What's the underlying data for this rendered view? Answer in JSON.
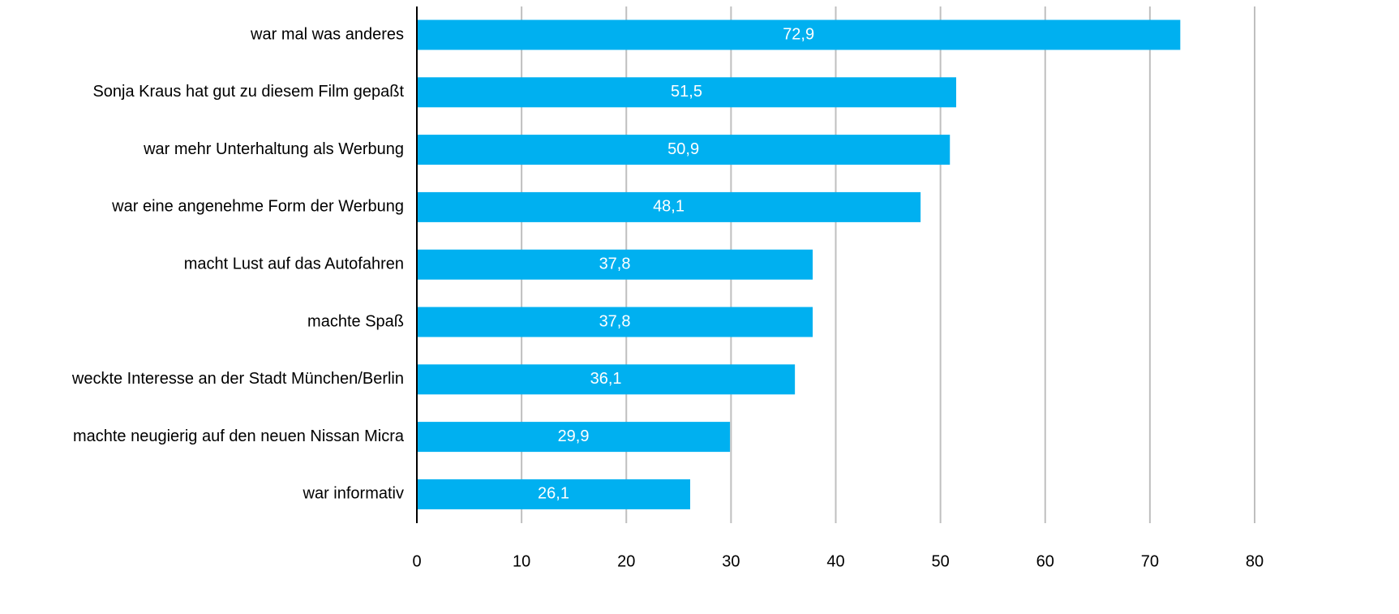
{
  "chart_data": {
    "type": "bar",
    "orientation": "horizontal",
    "title": "",
    "xlabel": "",
    "ylabel": "",
    "categories": [
      "war mal was anderes",
      "Sonja Kraus hat gut zu diesem Film gepaßt",
      "war mehr Unterhaltung als Werbung",
      "war eine angenehme Form der Werbung",
      "macht Lust auf das Autofahren",
      "machte Spaß",
      "weckte Interesse an der Stadt München/Berlin",
      "machte neugierig auf den neuen Nissan Micra",
      "war informativ"
    ],
    "values": [
      72.9,
      51.5,
      50.9,
      48.1,
      37.8,
      37.8,
      36.1,
      29.9,
      26.1
    ],
    "data_labels": [
      "72,9",
      "51,5",
      "50,9",
      "48,1",
      "37,8",
      "37,8",
      "36,1",
      "29,9",
      "26,1"
    ],
    "xlim": [
      0,
      80
    ],
    "ticks": [
      0,
      10,
      20,
      30,
      40,
      50,
      60,
      70,
      80
    ],
    "tick_labels": [
      "0",
      "10",
      "20",
      "30",
      "40",
      "50",
      "60",
      "70",
      "80"
    ],
    "grid": "vertical",
    "legend": "none",
    "colors": {
      "bar": "#00B0F0",
      "grid": "#BFBFBF",
      "axis": "#000000",
      "data_label": "#FFFFFF"
    }
  }
}
